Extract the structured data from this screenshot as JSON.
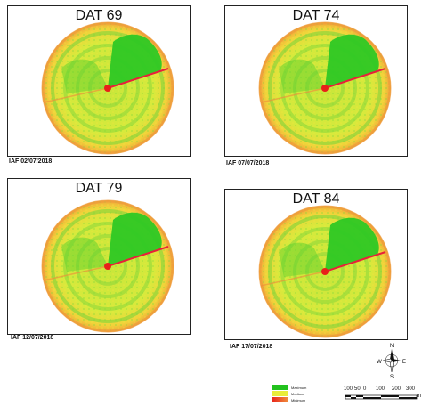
{
  "panels": [
    {
      "title": "DAT 69",
      "caption": "IAF 02/07/2018"
    },
    {
      "title": "DAT 74",
      "caption": "IAF 07/07/2018"
    },
    {
      "title": "DAT 79",
      "caption": "IAF 12/07/2018"
    },
    {
      "title": "DAT 84",
      "caption": "IAF 17/07/2018"
    }
  ],
  "legend": {
    "maximum": "Maximum",
    "medium": "Medium",
    "minimum": "Minimum",
    "colors": {
      "maximum": "#22c21e",
      "medium": "#e9ec3a",
      "minimum": "#e8201a"
    }
  },
  "scale": {
    "labels": [
      "100",
      "50",
      "0",
      "100",
      "200",
      "300"
    ],
    "unit": "m"
  },
  "compass": {
    "icon": "north-arrow-compass-icon"
  }
}
